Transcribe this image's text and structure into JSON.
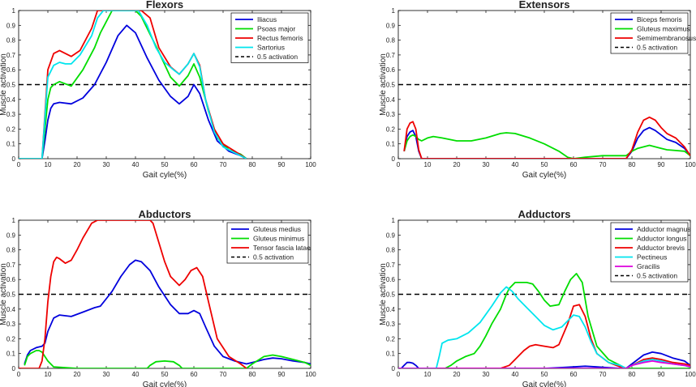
{
  "chart_data": [
    {
      "type": "line",
      "title": "Flexors",
      "xlabel": "Gait cyle(%)",
      "ylabel": "Muscle activation",
      "xlim": [
        0,
        100
      ],
      "ylim": [
        0,
        1
      ],
      "xticks": [
        0,
        10,
        20,
        30,
        40,
        50,
        60,
        70,
        80,
        90,
        100
      ],
      "yticks": [
        0,
        0.1,
        0.2,
        0.3,
        0.4,
        0.5,
        0.6,
        0.7,
        0.8,
        0.9,
        1
      ],
      "legend_position": "top-right",
      "series": [
        {
          "name": "Iliacus",
          "color": "#0000dd",
          "x": [
            0,
            8,
            9,
            10,
            11,
            12,
            14,
            18,
            22,
            26,
            30,
            34,
            37,
            40,
            44,
            48,
            52,
            55,
            58,
            60,
            62,
            65,
            68,
            72,
            76,
            78
          ],
          "y": [
            0,
            0,
            0.12,
            0.26,
            0.34,
            0.37,
            0.38,
            0.37,
            0.41,
            0.5,
            0.65,
            0.83,
            0.9,
            0.85,
            0.68,
            0.53,
            0.42,
            0.37,
            0.42,
            0.5,
            0.44,
            0.26,
            0.12,
            0.05,
            0.02,
            0
          ]
        },
        {
          "name": "Psoas major",
          "color": "#00dd00",
          "x": [
            0,
            8,
            9,
            10,
            11,
            12,
            14,
            18,
            22,
            26,
            28,
            32,
            36,
            40,
            42,
            45,
            48,
            52,
            55,
            58,
            60,
            62,
            65,
            68,
            72,
            76,
            78
          ],
          "y": [
            0,
            0,
            0.2,
            0.4,
            0.48,
            0.5,
            0.52,
            0.49,
            0.6,
            0.75,
            0.85,
            1,
            1,
            1,
            0.96,
            0.84,
            0.72,
            0.55,
            0.49,
            0.56,
            0.64,
            0.55,
            0.32,
            0.14,
            0.06,
            0.03,
            0
          ]
        },
        {
          "name": "Rectus femoris",
          "color": "#ee0000",
          "x": [
            0,
            8,
            9,
            10,
            12,
            14,
            16,
            18,
            21,
            25,
            27,
            29,
            32,
            35,
            38,
            40,
            42,
            45,
            48,
            52,
            55,
            58,
            60,
            62,
            64,
            67,
            70,
            74,
            78
          ],
          "y": [
            0,
            0,
            0.3,
            0.6,
            0.71,
            0.73,
            0.71,
            0.69,
            0.73,
            0.88,
            1,
            1,
            1,
            1,
            1,
            1,
            1,
            0.95,
            0.75,
            0.62,
            0.57,
            0.64,
            0.71,
            0.63,
            0.4,
            0.2,
            0.1,
            0.05,
            0
          ]
        },
        {
          "name": "Sartorius",
          "color": "#00e5ee",
          "x": [
            0,
            8,
            9,
            10,
            12,
            14,
            16,
            18,
            21,
            25,
            27,
            29,
            33,
            38,
            41,
            44,
            47,
            50,
            53,
            55,
            58,
            60,
            62,
            64,
            67,
            70,
            74,
            78
          ],
          "y": [
            0,
            0,
            0.28,
            0.55,
            0.63,
            0.65,
            0.64,
            0.64,
            0.7,
            0.83,
            0.95,
            1,
            1,
            1,
            1,
            0.9,
            0.75,
            0.65,
            0.6,
            0.57,
            0.64,
            0.71,
            0.62,
            0.4,
            0.18,
            0.08,
            0.04,
            0
          ]
        }
      ],
      "reference_line": {
        "name": "0.5 activation",
        "value": 0.5,
        "style": "dashed",
        "color": "#000000"
      }
    },
    {
      "type": "line",
      "title": "Extensors",
      "xlabel": "Gait cyle(%)",
      "ylabel": "Muscle activation",
      "xlim": [
        0,
        100
      ],
      "ylim": [
        0,
        1
      ],
      "xticks": [
        0,
        10,
        20,
        30,
        40,
        50,
        60,
        70,
        80,
        90,
        100
      ],
      "yticks": [
        0,
        0.1,
        0.2,
        0.3,
        0.4,
        0.5,
        0.6,
        0.7,
        0.8,
        0.9,
        1
      ],
      "legend_position": "top-right",
      "series": [
        {
          "name": "Biceps femoris",
          "color": "#0000dd",
          "x": [
            2,
            3,
            4,
            5,
            6,
            7,
            8,
            9,
            10,
            20,
            40,
            60,
            78,
            80,
            82,
            84,
            86,
            88,
            90,
            92,
            95,
            98,
            100
          ],
          "y": [
            0.05,
            0.15,
            0.18,
            0.19,
            0.15,
            0.05,
            0,
            0,
            0,
            0,
            0,
            0,
            0,
            0.05,
            0.14,
            0.19,
            0.21,
            0.19,
            0.16,
            0.13,
            0.11,
            0.07,
            0.02
          ]
        },
        {
          "name": "Gluteus maximus",
          "color": "#00dd00",
          "x": [
            2,
            3,
            4,
            5,
            6,
            7,
            8,
            10,
            12,
            15,
            20,
            25,
            30,
            35,
            37,
            40,
            45,
            50,
            55,
            58,
            60,
            64,
            70,
            75,
            78,
            80,
            82,
            84,
            86,
            88,
            90,
            92,
            95,
            98,
            100
          ],
          "y": [
            0.05,
            0.12,
            0.15,
            0.16,
            0.15,
            0.13,
            0.12,
            0.14,
            0.15,
            0.14,
            0.12,
            0.12,
            0.14,
            0.17,
            0.175,
            0.17,
            0.14,
            0.1,
            0.05,
            0.01,
            0,
            0.01,
            0.02,
            0.02,
            0.02,
            0.05,
            0.07,
            0.08,
            0.09,
            0.08,
            0.07,
            0.06,
            0.055,
            0.05,
            0.02
          ]
        },
        {
          "name": "Semimembranosus",
          "color": "#ee0000",
          "x": [
            2,
            3,
            4,
            5,
            6,
            7,
            8,
            9,
            10,
            20,
            40,
            60,
            78,
            80,
            82,
            84,
            86,
            88,
            90,
            92,
            95,
            98,
            100
          ],
          "y": [
            0.05,
            0.2,
            0.24,
            0.25,
            0.2,
            0.06,
            0,
            0,
            0,
            0,
            0,
            0,
            0,
            0.06,
            0.18,
            0.26,
            0.28,
            0.26,
            0.21,
            0.17,
            0.14,
            0.08,
            0.02
          ]
        }
      ],
      "reference_line": {
        "name": "0.5 activation",
        "value": 0.5,
        "style": "dashed",
        "color": "#000000"
      }
    },
    {
      "type": "line",
      "title": "Abductors",
      "xlabel": "Gait cyle(%)",
      "ylabel": "Muscle activation",
      "xlim": [
        0,
        100
      ],
      "ylim": [
        0,
        1
      ],
      "xticks": [
        0,
        10,
        20,
        30,
        40,
        50,
        60,
        70,
        80,
        90,
        100
      ],
      "yticks": [
        0,
        0.1,
        0.2,
        0.3,
        0.4,
        0.5,
        0.6,
        0.7,
        0.8,
        0.9,
        1
      ],
      "legend_position": "top-right",
      "series": [
        {
          "name": "Gluteus medius",
          "color": "#0000dd",
          "x": [
            2,
            3,
            4,
            6,
            8,
            9,
            10,
            12,
            14,
            18,
            22,
            26,
            28,
            30,
            32,
            35,
            38,
            40,
            42,
            45,
            48,
            52,
            55,
            58,
            60,
            62,
            64,
            67,
            70,
            74,
            78,
            80,
            84,
            87,
            90,
            94,
            98,
            100
          ],
          "y": [
            0.03,
            0.09,
            0.12,
            0.14,
            0.15,
            0.17,
            0.25,
            0.34,
            0.36,
            0.35,
            0.38,
            0.41,
            0.42,
            0.47,
            0.52,
            0.62,
            0.7,
            0.73,
            0.72,
            0.66,
            0.55,
            0.43,
            0.37,
            0.37,
            0.39,
            0.37,
            0.28,
            0.15,
            0.08,
            0.05,
            0.03,
            0.04,
            0.06,
            0.07,
            0.065,
            0.05,
            0.04,
            0.03
          ]
        },
        {
          "name": "Gluteus minimus",
          "color": "#00dd00",
          "x": [
            2,
            3,
            4,
            6,
            7,
            8,
            9,
            10,
            12,
            20,
            30,
            40,
            44,
            45,
            47,
            50,
            53,
            55,
            56,
            58,
            70,
            78,
            80,
            84,
            87,
            90,
            94,
            98,
            100
          ],
          "y": [
            0.02,
            0.08,
            0.1,
            0.12,
            0.12,
            0.11,
            0.08,
            0.05,
            0.01,
            0,
            0,
            0,
            0,
            0.02,
            0.045,
            0.05,
            0.045,
            0.02,
            0,
            0,
            0,
            0,
            0.03,
            0.08,
            0.09,
            0.08,
            0.06,
            0.04,
            0.02
          ]
        },
        {
          "name": "Tensor fascia latae",
          "color": "#ee0000",
          "x": [
            0,
            7,
            8,
            9,
            10,
            11,
            12,
            13,
            14,
            16,
            18,
            20,
            22,
            25,
            27,
            30,
            35,
            40,
            45,
            46,
            48,
            50,
            52,
            55,
            57,
            59,
            61,
            63,
            65,
            68,
            72,
            76,
            78
          ],
          "y": [
            0,
            0,
            0.05,
            0.2,
            0.45,
            0.62,
            0.72,
            0.75,
            0.74,
            0.71,
            0.73,
            0.8,
            0.88,
            0.98,
            1,
            1,
            1,
            1,
            1,
            0.98,
            0.85,
            0.72,
            0.62,
            0.56,
            0.6,
            0.66,
            0.68,
            0.62,
            0.45,
            0.2,
            0.08,
            0.03,
            0
          ]
        }
      ],
      "reference_line": {
        "name": "0.5 activation",
        "value": 0.5,
        "style": "dashed",
        "color": "#000000"
      }
    },
    {
      "type": "line",
      "title": "Adductors",
      "xlabel": "Gait cyle(%)",
      "ylabel": "Muscle activation",
      "xlim": [
        0,
        100
      ],
      "ylim": [
        0,
        1
      ],
      "xticks": [
        0,
        10,
        20,
        30,
        40,
        50,
        60,
        70,
        80,
        90,
        100
      ],
      "yticks": [
        0,
        0.1,
        0.2,
        0.3,
        0.4,
        0.5,
        0.6,
        0.7,
        0.8,
        0.9,
        1
      ],
      "legend_position": "top-right",
      "series": [
        {
          "name": "Adductor magnus",
          "color": "#0000dd",
          "x": [
            1,
            2,
            3,
            4,
            5,
            6,
            7,
            10,
            20,
            40,
            50,
            55,
            60,
            64,
            68,
            72,
            76,
            78,
            80,
            84,
            87,
            90,
            94,
            98,
            100
          ],
          "y": [
            0,
            0.02,
            0.04,
            0.04,
            0.035,
            0.02,
            0,
            0,
            0,
            0,
            0,
            0.005,
            0.01,
            0.015,
            0.01,
            0.005,
            0,
            0,
            0.03,
            0.09,
            0.11,
            0.1,
            0.07,
            0.05,
            0.02
          ]
        },
        {
          "name": "Adductor longus",
          "color": "#00dd00",
          "x": [
            0,
            16,
            18,
            20,
            23,
            26,
            28,
            30,
            32,
            35,
            37,
            38,
            40,
            42,
            44,
            46,
            48,
            50,
            52,
            55,
            57,
            59,
            61,
            63,
            65,
            68,
            72,
            76,
            78,
            100
          ],
          "y": [
            0,
            0,
            0.02,
            0.05,
            0.08,
            0.1,
            0.15,
            0.22,
            0.3,
            0.4,
            0.5,
            0.54,
            0.58,
            0.58,
            0.58,
            0.57,
            0.52,
            0.46,
            0.42,
            0.43,
            0.52,
            0.6,
            0.64,
            0.58,
            0.35,
            0.15,
            0.06,
            0.02,
            0,
            0
          ]
        },
        {
          "name": "Adductor brevis",
          "color": "#ee0000",
          "x": [
            0,
            30,
            35,
            38,
            40,
            43,
            45,
            47,
            50,
            53,
            55,
            58,
            60,
            62,
            64,
            66,
            68,
            72,
            76,
            78,
            80,
            84,
            87,
            90,
            94,
            98,
            100
          ],
          "y": [
            0,
            0,
            0,
            0.02,
            0.06,
            0.12,
            0.15,
            0.16,
            0.15,
            0.14,
            0.16,
            0.3,
            0.42,
            0.43,
            0.35,
            0.2,
            0.1,
            0.04,
            0.01,
            0,
            0.02,
            0.06,
            0.07,
            0.06,
            0.04,
            0.03,
            0.02
          ]
        },
        {
          "name": "Pectineus",
          "color": "#00e5ee",
          "x": [
            0,
            13,
            14,
            15,
            17,
            20,
            24,
            28,
            32,
            35,
            37,
            39,
            41,
            44,
            47,
            50,
            53,
            56,
            58,
            60,
            62,
            64,
            66,
            68,
            72,
            76,
            78,
            80,
            84,
            87,
            90,
            94,
            98,
            100
          ],
          "y": [
            0,
            0,
            0.08,
            0.17,
            0.19,
            0.2,
            0.24,
            0.31,
            0.42,
            0.51,
            0.55,
            0.52,
            0.47,
            0.41,
            0.35,
            0.29,
            0.26,
            0.28,
            0.32,
            0.36,
            0.35,
            0.28,
            0.18,
            0.1,
            0.04,
            0.02,
            0,
            0.02,
            0.05,
            0.06,
            0.05,
            0.03,
            0.02,
            0.01
          ]
        },
        {
          "name": "Gracilis",
          "color": "#dd00dd",
          "x": [
            0,
            30,
            50,
            70,
            78,
            80,
            84,
            87,
            90,
            94,
            98,
            100
          ],
          "y": [
            0,
            0,
            0,
            0,
            0,
            0.02,
            0.04,
            0.05,
            0.04,
            0.03,
            0.02,
            0.01
          ]
        }
      ],
      "reference_line": {
        "name": "0.5 activation",
        "value": 0.5,
        "style": "dashed",
        "color": "#000000"
      }
    }
  ]
}
